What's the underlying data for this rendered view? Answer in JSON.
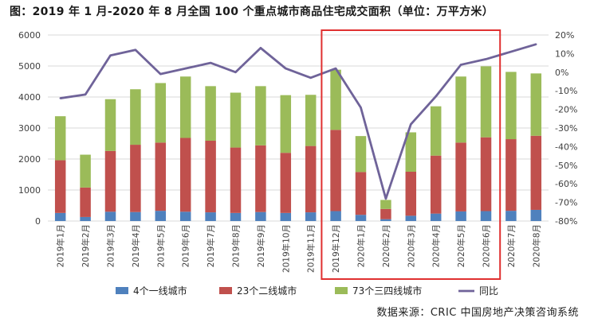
{
  "title": "图：2019 年 1 月-2020 年 8 月全国 100 个重点城市商品住宅成交面积（单位：万平方米）",
  "source": "数据来源：CRIC 中国房地产决策咨询系统",
  "colors": {
    "tier1": "#4f81bd",
    "tier2": "#c0504d",
    "tier34": "#9bbb59",
    "yoy": "#6f6399",
    "highlight_box": "#e03030",
    "grid": "#d9d9d9",
    "axis_text": "#404040"
  },
  "chart_data": {
    "type": "bar",
    "stacked": true,
    "categories": [
      "2019年1月",
      "2019年2月",
      "2019年3月",
      "2019年4月",
      "2019年5月",
      "2019年6月",
      "2019年7月",
      "2019年8月",
      "2019年9月",
      "2019年10月",
      "2019年11月",
      "2019年12月",
      "2020年1月",
      "2020年2月",
      "2020年3月",
      "2020年4月",
      "2020年5月",
      "2020年6月",
      "2020年7月",
      "2020年8月"
    ],
    "series": [
      {
        "name": "4个一线城市",
        "color_key": "tier1",
        "values": [
          260,
          130,
          300,
          290,
          330,
          300,
          280,
          260,
          290,
          260,
          280,
          320,
          200,
          60,
          170,
          240,
          310,
          320,
          330,
          360
        ]
      },
      {
        "name": "23个二线城市",
        "color_key": "tier2",
        "values": [
          1700,
          950,
          1960,
          2170,
          2200,
          2380,
          2310,
          2110,
          2150,
          1940,
          2140,
          2620,
          1380,
          330,
          1420,
          1870,
          2220,
          2380,
          2310,
          2390
        ]
      },
      {
        "name": "73个三四线城市",
        "color_key": "tier34",
        "values": [
          1420,
          1060,
          1670,
          1790,
          1920,
          1980,
          1760,
          1770,
          1910,
          1860,
          1650,
          1940,
          1160,
          290,
          1270,
          1590,
          2130,
          2290,
          2170,
          2010
        ]
      }
    ],
    "line_series": {
      "name": "同比",
      "color_key": "yoy",
      "axis": "right",
      "values": [
        -14,
        -12,
        9,
        12,
        -1,
        2,
        5,
        0,
        13,
        2,
        -3,
        2,
        -19,
        -68,
        -28,
        -13,
        4,
        7,
        11,
        15
      ]
    },
    "y_left": {
      "min": 0,
      "max": 6000,
      "ticks": [
        0,
        1000,
        2000,
        3000,
        4000,
        5000,
        6000
      ]
    },
    "y_right": {
      "min": -80,
      "max": 20,
      "ticks": [
        -80,
        -70,
        -60,
        -50,
        -40,
        -30,
        -20,
        -10,
        0,
        10,
        20
      ],
      "unit": "%"
    },
    "highlight_range": [
      11,
      17
    ],
    "legend_position": "bottom",
    "grid": true
  }
}
